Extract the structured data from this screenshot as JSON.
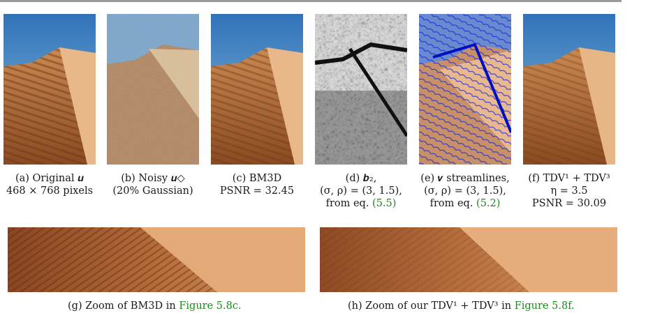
{
  "panels": [
    {
      "caption_lines": [
        "(a) Original 𝒖",
        "468 × 768 pixels"
      ]
    },
    {
      "caption_lines": [
        "(b) Noisy 𝒖◇",
        "(20% Gaussian)"
      ]
    },
    {
      "caption_lines": [
        "(c) BM3D",
        "PSNR = 32.45"
      ]
    },
    {
      "caption_lines": [
        "(d) 𝒃₂,",
        "(σ, ρ) = (3, 1.5),",
        "from eq."
      ],
      "ref": "(5.5)"
    },
    {
      "caption_lines": [
        "(e) 𝒗 streamlines,",
        "(σ, ρ) = (3, 1.5),",
        "from eq."
      ],
      "ref": "(5.2)"
    },
    {
      "caption_lines": [
        "(f) TDV¹ + TDV³",
        "η = 3.5",
        "PSNR = 30.09"
      ]
    }
  ],
  "zooms": [
    {
      "caption": "(g) Zoom of BM3D in",
      "ref": "Figure 5.8c."
    },
    {
      "caption": "(h) Zoom of our TDV¹ + TDV³ in",
      "ref": "Figure 5.8f."
    }
  ],
  "colors": {
    "link": "#1a8a1a",
    "sky": "#3a86c8",
    "sand": "#c8844a",
    "streamline": "#1020e0"
  }
}
